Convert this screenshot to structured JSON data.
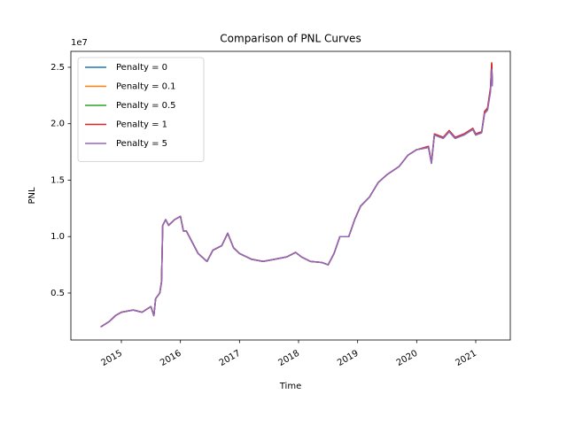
{
  "chart_data": {
    "type": "line",
    "title": "Comparison of PNL Curves",
    "x_label": "Time",
    "y_label": "PNL",
    "y_offset_label": "1e7",
    "x": [
      2014.65,
      2014.8,
      2014.9,
      2015.0,
      2015.2,
      2015.35,
      2015.5,
      2015.55,
      2015.58,
      2015.65,
      2015.68,
      2015.7,
      2015.75,
      2015.8,
      2015.9,
      2016.0,
      2016.05,
      2016.1,
      2016.2,
      2016.3,
      2016.45,
      2016.55,
      2016.7,
      2016.8,
      2016.9,
      2017.0,
      2017.2,
      2017.4,
      2017.6,
      2017.8,
      2017.95,
      2018.05,
      2018.2,
      2018.4,
      2018.5,
      2018.6,
      2018.7,
      2018.85,
      2018.95,
      2019.05,
      2019.2,
      2019.35,
      2019.5,
      2019.7,
      2019.85,
      2020.0,
      2020.2,
      2020.25,
      2020.3,
      2020.45,
      2020.55,
      2020.65,
      2020.8,
      2020.95,
      2021.0,
      2021.1,
      2021.15,
      2021.2,
      2021.25,
      2021.27,
      2021.28
    ],
    "series": [
      {
        "name": "Penalty = 0",
        "color": "#1f77b4",
        "values": [
          0.2,
          0.25,
          0.3,
          0.33,
          0.35,
          0.33,
          0.38,
          0.3,
          0.45,
          0.5,
          0.6,
          1.1,
          1.15,
          1.1,
          1.15,
          1.18,
          1.05,
          1.05,
          0.95,
          0.85,
          0.78,
          0.88,
          0.92,
          1.03,
          0.9,
          0.85,
          0.8,
          0.78,
          0.8,
          0.82,
          0.86,
          0.82,
          0.78,
          0.77,
          0.75,
          0.85,
          1.0,
          1.0,
          1.15,
          1.27,
          1.35,
          1.48,
          1.55,
          1.62,
          1.72,
          1.77,
          1.79,
          1.65,
          1.9,
          1.87,
          1.93,
          1.87,
          1.9,
          1.95,
          1.9,
          1.92,
          2.1,
          2.13,
          2.3,
          2.52,
          2.35
        ]
      },
      {
        "name": "Penalty = 0.1",
        "color": "#ff7f0e",
        "values": [
          0.2,
          0.25,
          0.3,
          0.33,
          0.35,
          0.33,
          0.38,
          0.3,
          0.45,
          0.5,
          0.6,
          1.1,
          1.15,
          1.1,
          1.15,
          1.18,
          1.05,
          1.05,
          0.95,
          0.85,
          0.78,
          0.88,
          0.92,
          1.03,
          0.9,
          0.85,
          0.8,
          0.78,
          0.8,
          0.82,
          0.86,
          0.82,
          0.78,
          0.77,
          0.75,
          0.85,
          1.0,
          1.0,
          1.15,
          1.27,
          1.35,
          1.48,
          1.55,
          1.62,
          1.72,
          1.77,
          1.79,
          1.65,
          1.9,
          1.87,
          1.93,
          1.87,
          1.9,
          1.95,
          1.9,
          1.92,
          2.1,
          2.13,
          2.31,
          2.53,
          2.36
        ]
      },
      {
        "name": "Penalty = 0.5",
        "color": "#2ca02c",
        "values": [
          0.2,
          0.25,
          0.3,
          0.33,
          0.35,
          0.33,
          0.38,
          0.3,
          0.45,
          0.5,
          0.6,
          1.1,
          1.15,
          1.1,
          1.15,
          1.18,
          1.05,
          1.05,
          0.95,
          0.85,
          0.78,
          0.88,
          0.92,
          1.03,
          0.9,
          0.85,
          0.8,
          0.78,
          0.8,
          0.82,
          0.86,
          0.82,
          0.78,
          0.77,
          0.75,
          0.85,
          1.0,
          1.0,
          1.15,
          1.27,
          1.35,
          1.48,
          1.55,
          1.62,
          1.72,
          1.77,
          1.79,
          1.65,
          1.9,
          1.87,
          1.93,
          1.87,
          1.9,
          1.95,
          1.9,
          1.92,
          2.1,
          2.13,
          2.31,
          2.53,
          2.36
        ]
      },
      {
        "name": "Penalty = 1",
        "color": "#d62728",
        "values": [
          0.2,
          0.25,
          0.3,
          0.33,
          0.35,
          0.33,
          0.38,
          0.3,
          0.45,
          0.5,
          0.6,
          1.1,
          1.15,
          1.1,
          1.15,
          1.18,
          1.05,
          1.05,
          0.95,
          0.85,
          0.78,
          0.88,
          0.92,
          1.03,
          0.9,
          0.85,
          0.8,
          0.78,
          0.8,
          0.82,
          0.86,
          0.82,
          0.78,
          0.77,
          0.75,
          0.85,
          1.0,
          1.0,
          1.15,
          1.27,
          1.35,
          1.48,
          1.55,
          1.62,
          1.72,
          1.77,
          1.8,
          1.66,
          1.91,
          1.88,
          1.94,
          1.88,
          1.91,
          1.96,
          1.91,
          1.93,
          2.11,
          2.14,
          2.32,
          2.54,
          2.37
        ]
      },
      {
        "name": "Penalty = 5",
        "color": "#9467bd",
        "values": [
          0.2,
          0.25,
          0.3,
          0.33,
          0.35,
          0.33,
          0.38,
          0.3,
          0.45,
          0.5,
          0.6,
          1.1,
          1.15,
          1.1,
          1.15,
          1.18,
          1.05,
          1.05,
          0.95,
          0.85,
          0.78,
          0.88,
          0.92,
          1.03,
          0.9,
          0.85,
          0.8,
          0.78,
          0.8,
          0.82,
          0.86,
          0.82,
          0.78,
          0.77,
          0.75,
          0.85,
          1.0,
          1.0,
          1.15,
          1.27,
          1.35,
          1.48,
          1.55,
          1.62,
          1.72,
          1.77,
          1.79,
          1.65,
          1.9,
          1.87,
          1.93,
          1.87,
          1.9,
          1.95,
          1.9,
          1.92,
          2.09,
          2.12,
          2.28,
          2.48,
          2.33
        ]
      }
    ],
    "xlim": [
      2014.145,
      2021.585
    ],
    "xticks": [
      2015,
      2016,
      2017,
      2018,
      2019,
      2020,
      2021
    ],
    "ylim": [
      0.084,
      2.641
    ],
    "yticks": [
      0.5,
      {
        "value": 1,
        "label": "1.0"
      },
      1.5,
      {
        "value": 2,
        "label": "2.0"
      },
      2.5
    ],
    "legend": "upper left"
  }
}
